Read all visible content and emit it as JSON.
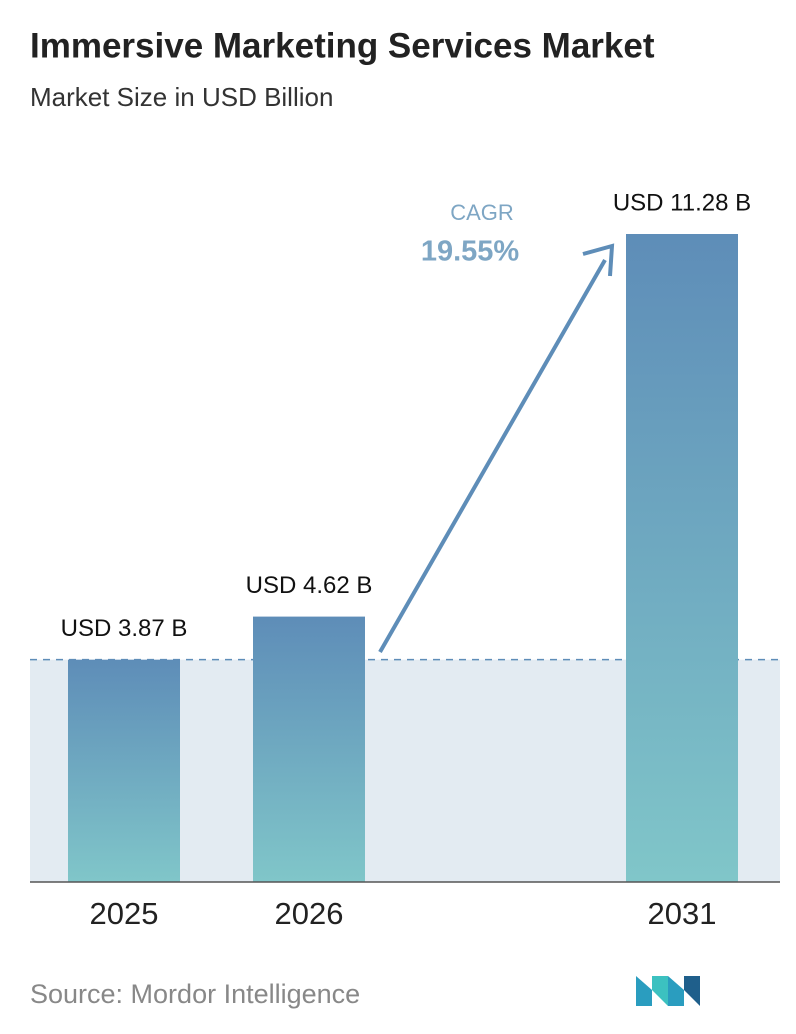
{
  "chart_data": {
    "type": "bar",
    "title": "Immersive Marketing Services Market",
    "subtitle": "Market Size in USD Billion",
    "categories": [
      "2025",
      "2026",
      "2031"
    ],
    "values": [
      3.87,
      4.62,
      11.28
    ],
    "value_labels": [
      "USD 3.87 B",
      "USD 4.62 B",
      "USD 11.28 B"
    ],
    "gradient": [
      "#5e8db8",
      "#80c6c9"
    ],
    "annotation": {
      "label": "CAGR",
      "value": "19.55%"
    },
    "source": "Source:  Mordor Intelligence"
  }
}
